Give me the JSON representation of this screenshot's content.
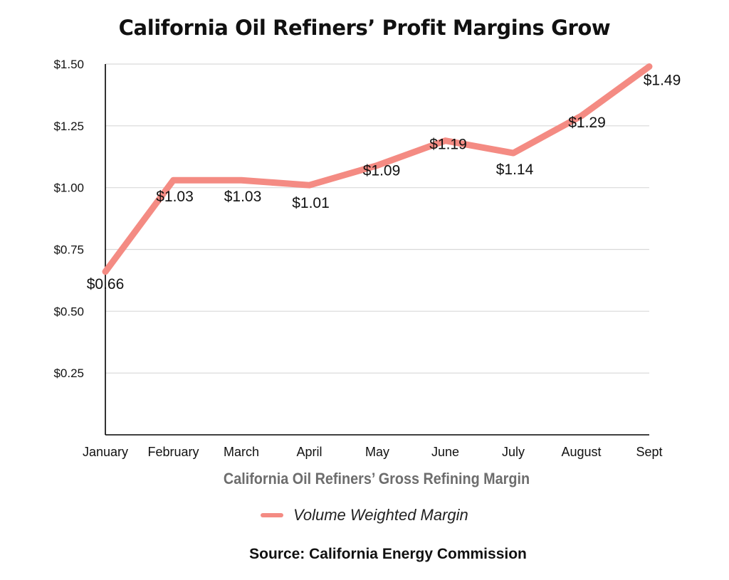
{
  "page": {
    "title": "California Oil Refiners’ Profit Margins Grow",
    "source": "Source: California Energy Commission"
  },
  "colors": {
    "line": "#f48b83",
    "grid": "#d9d9d9",
    "axis": "#000000"
  },
  "chart_data": {
    "type": "line",
    "title": "California Oil Refiners’ Profit Margins Grow",
    "xlabel": "California Oil Refiners’ Gross Refining Margin",
    "ylabel": "",
    "categories": [
      "January",
      "February",
      "March",
      "April",
      "May",
      "June",
      "July",
      "August",
      "Sept"
    ],
    "series": [
      {
        "name": "Volume Weighted Margin",
        "values": [
          0.66,
          1.03,
          1.03,
          1.01,
          1.09,
          1.19,
          1.14,
          1.29,
          1.49
        ],
        "labels": [
          "$0.66",
          "$1.03",
          "$1.03",
          "$1.01",
          "$1.09",
          "$1.19",
          "$1.14",
          "$1.29",
          "$1.49"
        ]
      }
    ],
    "ylim": [
      0,
      1.5
    ],
    "yticks": [
      0.25,
      0.5,
      0.75,
      1.0,
      1.25,
      1.5
    ],
    "ytick_labels": [
      "$0.25",
      "$0.50",
      "$0.75",
      "$1.00",
      "$1.25",
      "$1.50"
    ],
    "grid": true,
    "legend": "bottom-center"
  }
}
